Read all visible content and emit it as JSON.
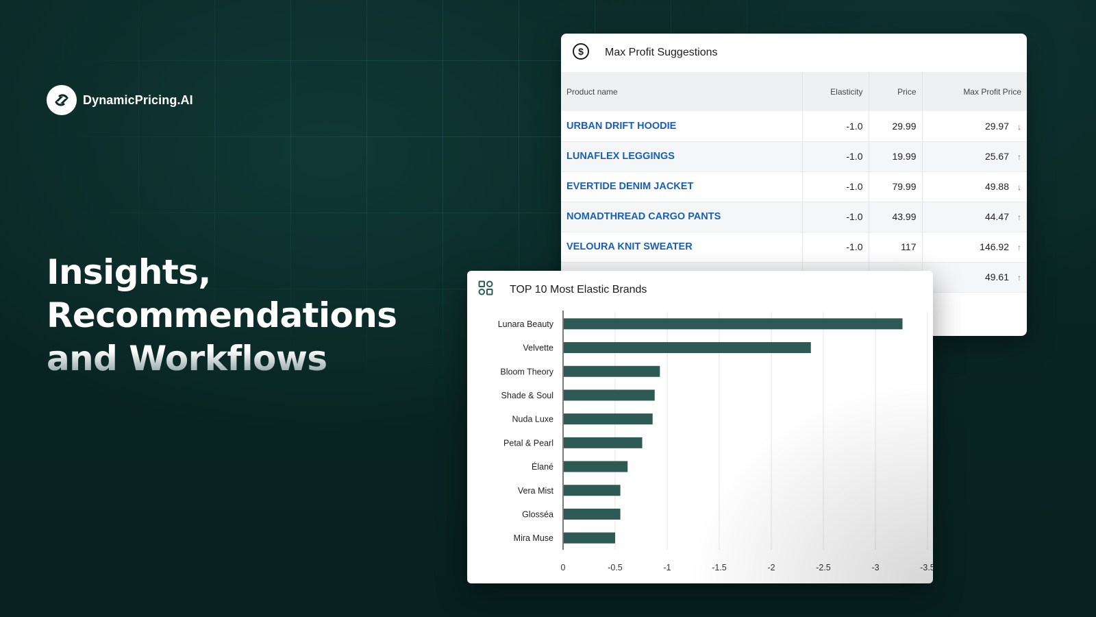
{
  "brand": {
    "name": "DynamicPricing.AI",
    "logo_icon": "dynamic-pricing-logo-icon"
  },
  "headline": {
    "line1": "Insights,",
    "line2": "Recommendations",
    "line3": "and Workflows"
  },
  "profit_card": {
    "title": "Max Profit Suggestions",
    "icon": "dollar-circle-icon",
    "columns": [
      "Product name",
      "Elasticity",
      "Price",
      "Max Profit Price"
    ],
    "rows": [
      {
        "name": "URBAN DRIFT HOODIE",
        "elasticity": "-1.0",
        "price": "29.99",
        "max_price": "29.97",
        "trend": "down"
      },
      {
        "name": "LUNAFLEX LEGGINGS",
        "elasticity": "-1.0",
        "price": "19.99",
        "max_price": "25.67",
        "trend": "up"
      },
      {
        "name": "EVERTIDE DENIM JACKET",
        "elasticity": "-1.0",
        "price": "79.99",
        "max_price": "49.88",
        "trend": "down"
      },
      {
        "name": "NOMADTHREAD CARGO PANTS",
        "elasticity": "-1.0",
        "price": "43.99",
        "max_price": "44.47",
        "trend": "up"
      },
      {
        "name": "VELOURA KNIT SWEATER",
        "elasticity": "-1.0",
        "price": "117",
        "max_price": "146.92",
        "trend": "up"
      },
      {
        "name": "",
        "elasticity": "",
        "price": "",
        "max_price": "49.61",
        "trend": "up"
      }
    ],
    "colors": {
      "link": "#1a5fb4",
      "up": "#26a85a",
      "down": "#d1342f"
    }
  },
  "brands_card": {
    "title": "TOP 10 Most Elastic Brands",
    "icon": "dashboard-grid-icon"
  },
  "chart_data": {
    "type": "bar",
    "orientation": "horizontal",
    "categories": [
      "Lunara Beauty",
      "Velvette",
      "Bloom Theory",
      "Shade & Soul",
      "Nuda Luxe",
      "Petal & Pearl",
      "Élané",
      "Vera Mist",
      "Glosséa",
      "Mira Muse"
    ],
    "values": [
      -3.26,
      -2.38,
      -0.93,
      -0.88,
      -0.86,
      -0.76,
      -0.62,
      -0.55,
      -0.55,
      -0.5
    ],
    "xlim": [
      0,
      -3.5
    ],
    "xticks": [
      0,
      -0.5,
      -1,
      -1.5,
      -2,
      -2.5,
      -3,
      -3.5
    ],
    "xtick_labels": [
      "0",
      "-0.5",
      "-1",
      "-1.5",
      "-2",
      "-2.5",
      "-3",
      "-3.5"
    ],
    "grid": true,
    "bar_color": "#2e5a55"
  }
}
